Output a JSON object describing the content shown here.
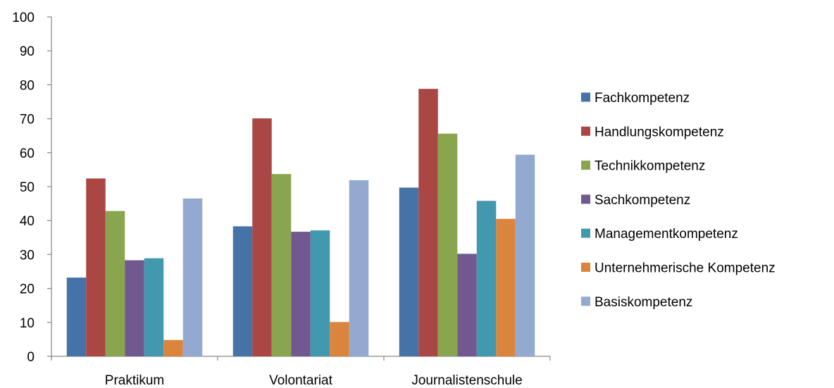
{
  "chart_data": {
    "type": "bar",
    "categories": [
      "Praktikum",
      "Volontariat",
      "Journalistenschule"
    ],
    "ylim": [
      0,
      100
    ],
    "yticks": [
      0,
      10,
      20,
      30,
      40,
      50,
      60,
      70,
      80,
      90,
      100
    ],
    "grid": false,
    "legend_position": "right",
    "series": [
      {
        "name": "Fachkompetenz",
        "color": "#4572A7",
        "values": [
          23.2,
          38.3,
          49.7
        ]
      },
      {
        "name": "Handlungskompetenz",
        "color": "#AA4643",
        "values": [
          52.4,
          70.1,
          78.8
        ]
      },
      {
        "name": "Technikkompetenz",
        "color": "#89A54E",
        "values": [
          42.8,
          53.7,
          65.6
        ]
      },
      {
        "name": "Sachkompetenz",
        "color": "#71588F",
        "values": [
          28.3,
          36.7,
          30.2
        ]
      },
      {
        "name": "Managementkompetenz",
        "color": "#4198AF",
        "values": [
          28.9,
          37.1,
          45.8
        ]
      },
      {
        "name": "Unternehmerische Kompetenz",
        "color": "#DB843D",
        "values": [
          4.8,
          10.1,
          40.5
        ]
      },
      {
        "name": "Basiskompetenz",
        "color": "#93A9CF",
        "values": [
          46.5,
          51.9,
          59.4
        ]
      }
    ]
  }
}
